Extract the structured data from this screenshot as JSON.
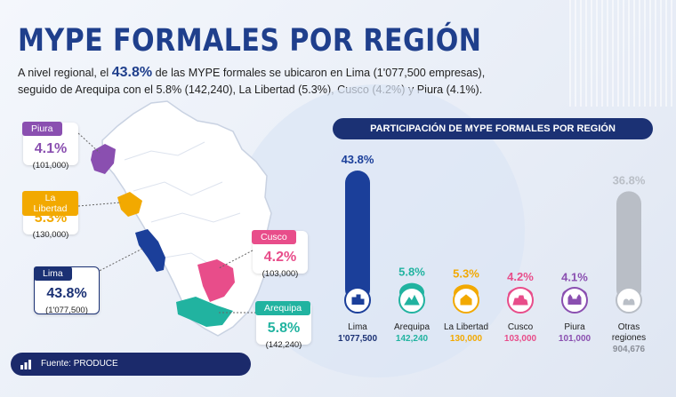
{
  "title": "MYPE FORMALES POR REGIÓN",
  "subtitle": {
    "part1": "A nivel regional, el ",
    "highlight": "43.8%",
    "part2": " de las MYPE formales se ubicaron en Lima (1'077,500 empresas),",
    "part3": "seguido de Arequipa con el 5.8% (142,240), La Libertad (5.3%), Cusco (4.2%) y Piura (4.1%)."
  },
  "map_cards": [
    {
      "region": "Piura",
      "pct": "4.1%",
      "count": "(101,000)",
      "color": "#8a4fb0"
    },
    {
      "region": "La Libertad",
      "pct": "5.3%",
      "count": "(130,000)",
      "color": "#f2a900"
    },
    {
      "region": "Lima",
      "pct": "43.8%",
      "count": "(1'077,500)",
      "color": "#1b3174"
    },
    {
      "region": "Cusco",
      "pct": "4.2%",
      "count": "(103,000)",
      "color": "#e84d8a"
    },
    {
      "region": "Arequipa",
      "pct": "5.8%",
      "count": "(142,240)",
      "color": "#21b3a0"
    }
  ],
  "chart_data": {
    "type": "bar",
    "title": "PARTICIPACIÓN DE MYPE FORMALES POR REGIÓN",
    "categories": [
      "Lima",
      "Arequipa",
      "La Libertad",
      "Cusco",
      "Piura",
      "Otras regiones"
    ],
    "values": [
      43.8,
      5.8,
      5.3,
      4.2,
      4.1,
      36.8
    ],
    "value_labels": [
      "43.8%",
      "5.8%",
      "5.3%",
      "4.2%",
      "4.1%",
      "36.8%"
    ],
    "counts": [
      "1'077,500",
      "142,240",
      "130,000",
      "103,000",
      "101,000",
      "904,676"
    ],
    "colors": [
      "#1b3f9a",
      "#21b3a0",
      "#f2a900",
      "#e84d8a",
      "#8a4fb0",
      "#b9bec6"
    ],
    "icons": [
      "buildings-icon",
      "mountain-icon",
      "church-icon",
      "ruins-icon",
      "cathedral-icon",
      "people-icon"
    ],
    "ylim": [
      0,
      45
    ]
  },
  "source": "Fuente: PRODUCE"
}
